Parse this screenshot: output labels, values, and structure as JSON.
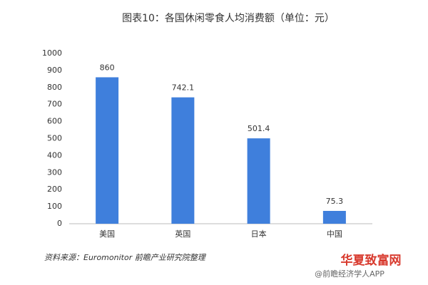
{
  "chart_data": {
    "type": "bar",
    "title": "图表10：各国休闲零食人均消费额（单位：元）",
    "categories": [
      "美国",
      "英国",
      "日本",
      "中国"
    ],
    "values": [
      860,
      742.1,
      501.4,
      75.3
    ],
    "color": "#3f7fdc",
    "ylim": [
      0,
      1000
    ],
    "yticks": [
      0,
      100,
      200,
      300,
      400,
      500,
      600,
      700,
      800,
      900,
      1000
    ],
    "grid": false,
    "source": "资料来源：Euromonitor 前瞻产业研究院整理",
    "watermarks": [
      "华夏致富网",
      "@前瞻经济学人APP"
    ]
  }
}
